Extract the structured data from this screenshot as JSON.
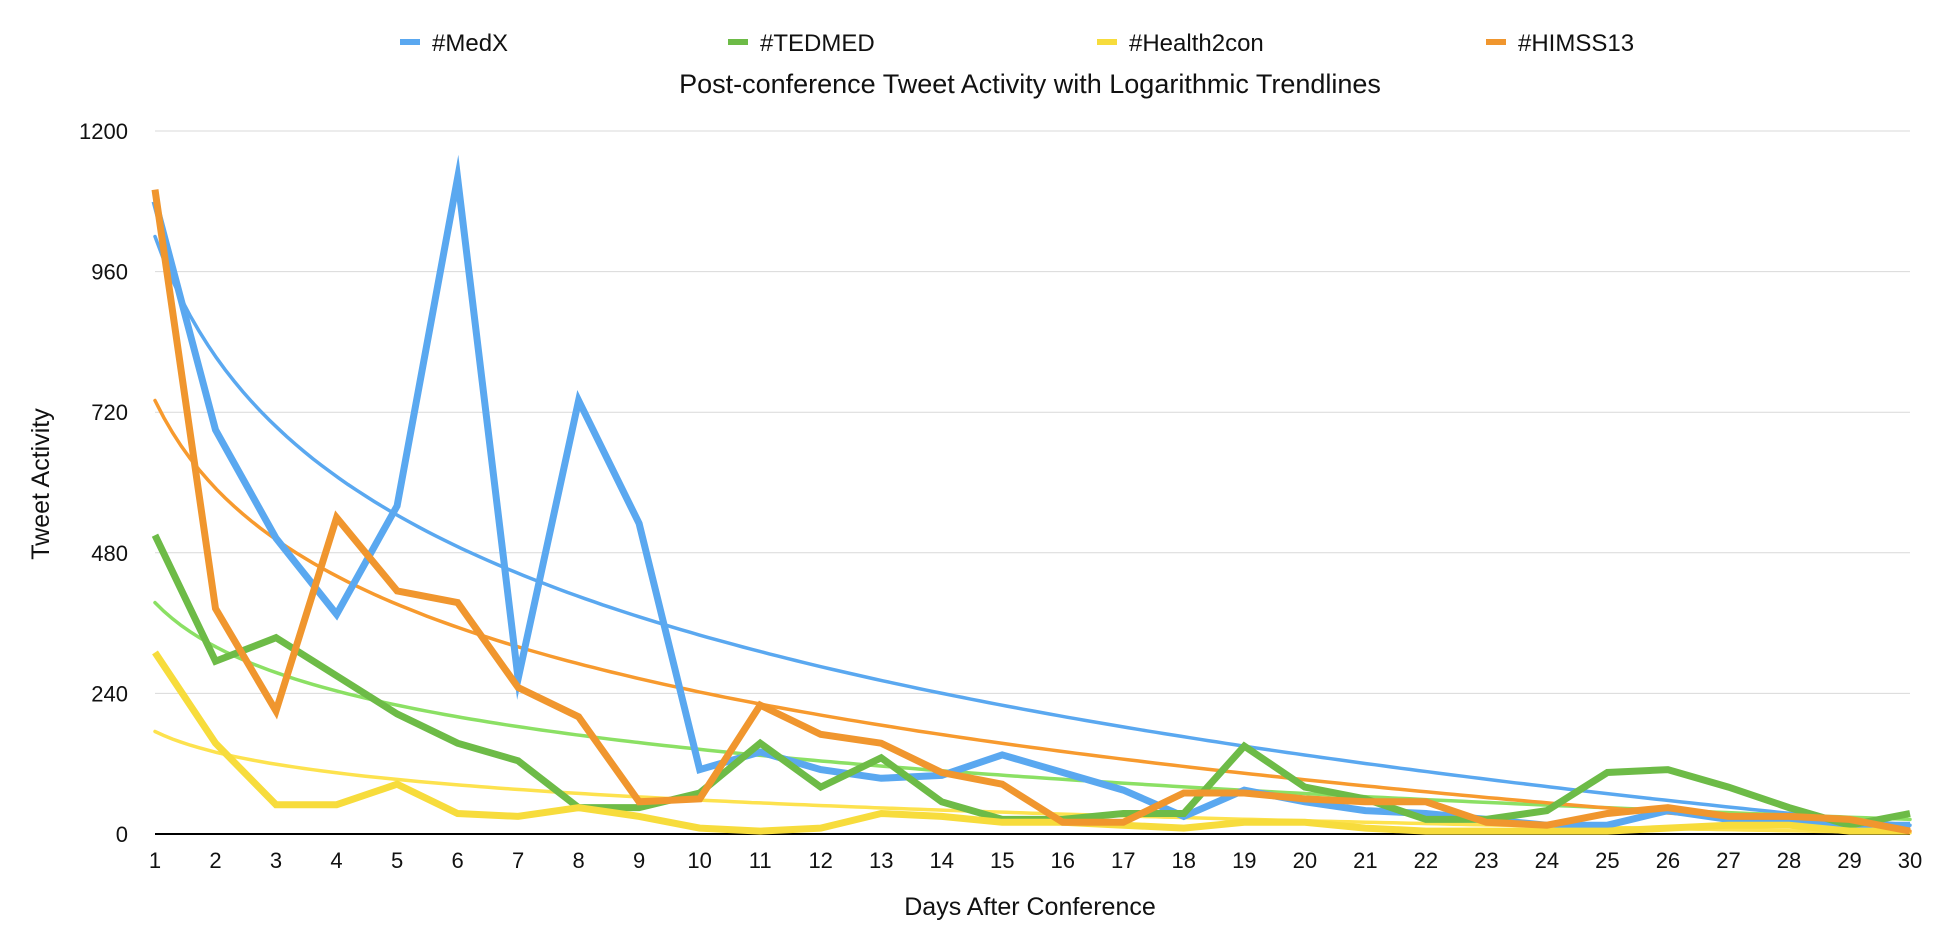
{
  "chart_data": {
    "type": "line",
    "title": "Post-conference Tweet Activity with Logarithmic Trendlines",
    "xlabel": "Days After Conference",
    "ylabel": "Tweet Activity",
    "x": [
      1,
      2,
      3,
      4,
      5,
      6,
      7,
      8,
      9,
      10,
      11,
      12,
      13,
      14,
      15,
      16,
      17,
      18,
      19,
      20,
      21,
      22,
      23,
      24,
      25,
      26,
      27,
      28,
      29,
      30
    ],
    "xlim": [
      1,
      30
    ],
    "ylim": [
      0,
      1200
    ],
    "yticks": [
      "0",
      "240",
      "480",
      "720",
      "960",
      "1200"
    ],
    "grid": true,
    "legend": "top",
    "series": [
      {
        "name": "#MedX",
        "color": "#5aa8f0",
        "values": [
          1080,
          690,
          505,
          375,
          560,
          1120,
          265,
          740,
          530,
          110,
          140,
          110,
          95,
          100,
          135,
          105,
          75,
          30,
          75,
          55,
          40,
          35,
          25,
          15,
          15,
          40,
          25,
          25,
          15,
          15
        ],
        "trendline": {
          "type": "logarithmic",
          "color": "#5aa8f0",
          "start": 1020,
          "end": 15
        }
      },
      {
        "name": "#TEDMED",
        "color": "#6dbb47",
        "values": [
          510,
          295,
          335,
          270,
          205,
          155,
          125,
          45,
          45,
          70,
          155,
          80,
          130,
          55,
          25,
          25,
          35,
          35,
          150,
          80,
          60,
          25,
          25,
          40,
          105,
          110,
          80,
          45,
          15,
          35
        ],
        "trendline": {
          "type": "logarithmic",
          "color": "#8be064",
          "start": 395,
          "end": 25
        }
      },
      {
        "name": "#Health2con",
        "color": "#f7dc3c",
        "values": [
          310,
          155,
          50,
          50,
          85,
          35,
          30,
          45,
          30,
          10,
          5,
          10,
          35,
          30,
          20,
          20,
          15,
          10,
          20,
          20,
          10,
          5,
          5,
          5,
          5,
          10,
          15,
          15,
          5,
          5
        ],
        "trendline": {
          "type": "logarithmic",
          "color": "#fde24e",
          "start": 175,
          "end": 2
        }
      },
      {
        "name": "#HIMSS13",
        "color": "#f0962e",
        "values": [
          1100,
          385,
          210,
          540,
          415,
          395,
          250,
          200,
          55,
          60,
          220,
          170,
          155,
          105,
          85,
          20,
          20,
          70,
          70,
          60,
          55,
          55,
          20,
          15,
          35,
          45,
          30,
          30,
          25,
          5
        ],
        "trendline": {
          "type": "logarithmic",
          "color": "#f79a2e",
          "start": 740,
          "end": 5
        }
      }
    ]
  }
}
